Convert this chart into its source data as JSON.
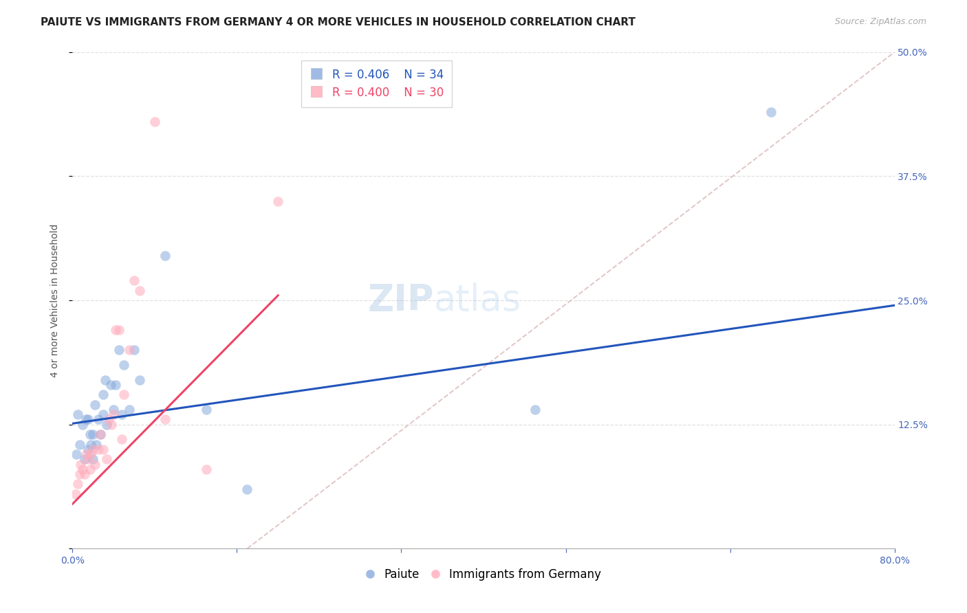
{
  "title": "PAIUTE VS IMMIGRANTS FROM GERMANY 4 OR MORE VEHICLES IN HOUSEHOLD CORRELATION CHART",
  "source": "Source: ZipAtlas.com",
  "ylabel": "4 or more Vehicles in Household",
  "xlim": [
    0.0,
    0.8
  ],
  "ylim": [
    0.0,
    0.5
  ],
  "xticks": [
    0.0,
    0.16,
    0.32,
    0.48,
    0.64,
    0.8
  ],
  "yticks": [
    0.0,
    0.125,
    0.25,
    0.375,
    0.5
  ],
  "background_color": "#ffffff",
  "grid_color": "#e0e0e0",
  "watermark_zip": "ZIP",
  "watermark_atlas": "atlas",
  "legend_blue_r": "R = 0.406",
  "legend_blue_n": "N = 34",
  "legend_pink_r": "R = 0.400",
  "legend_pink_n": "N = 30",
  "blue_color": "#88aadd",
  "pink_color": "#ffaabb",
  "blue_line_color": "#2255bb",
  "pink_line_color": "#ee4466",
  "dashed_line_color": "#ddbbbb",
  "blue_line_x0": 0.0,
  "blue_line_y0": 0.126,
  "blue_line_x1": 0.8,
  "blue_line_y1": 0.245,
  "pink_line_x0": 0.0,
  "pink_line_y0": 0.045,
  "pink_line_x1": 0.2,
  "pink_line_y1": 0.255,
  "dash_line_x0": 0.17,
  "dash_line_y0": 0.0,
  "dash_line_x1": 0.8,
  "dash_line_y1": 0.5,
  "paiute_x": [
    0.004,
    0.005,
    0.007,
    0.01,
    0.012,
    0.013,
    0.015,
    0.015,
    0.017,
    0.018,
    0.02,
    0.02,
    0.022,
    0.023,
    0.025,
    0.027,
    0.03,
    0.03,
    0.032,
    0.033,
    0.037,
    0.04,
    0.042,
    0.045,
    0.048,
    0.05,
    0.055,
    0.06,
    0.065,
    0.09,
    0.13,
    0.17,
    0.45,
    0.68
  ],
  "paiute_y": [
    0.095,
    0.135,
    0.105,
    0.125,
    0.09,
    0.13,
    0.1,
    0.13,
    0.115,
    0.105,
    0.09,
    0.115,
    0.145,
    0.105,
    0.13,
    0.115,
    0.155,
    0.135,
    0.17,
    0.125,
    0.165,
    0.14,
    0.165,
    0.2,
    0.135,
    0.185,
    0.14,
    0.2,
    0.17,
    0.295,
    0.14,
    0.06,
    0.14,
    0.44
  ],
  "germany_x": [
    0.003,
    0.005,
    0.007,
    0.008,
    0.01,
    0.012,
    0.013,
    0.015,
    0.017,
    0.018,
    0.02,
    0.022,
    0.025,
    0.027,
    0.03,
    0.033,
    0.035,
    0.038,
    0.04,
    0.042,
    0.045,
    0.048,
    0.05,
    0.055,
    0.06,
    0.065,
    0.08,
    0.09,
    0.13,
    0.2
  ],
  "germany_y": [
    0.055,
    0.065,
    0.075,
    0.085,
    0.08,
    0.075,
    0.095,
    0.09,
    0.08,
    0.095,
    0.1,
    0.085,
    0.1,
    0.115,
    0.1,
    0.09,
    0.13,
    0.125,
    0.135,
    0.22,
    0.22,
    0.11,
    0.155,
    0.2,
    0.27,
    0.26,
    0.43,
    0.13,
    0.08,
    0.35
  ],
  "title_fontsize": 11,
  "axis_label_fontsize": 10,
  "tick_fontsize": 10,
  "legend_fontsize": 12,
  "watermark_fontsize": 38,
  "source_fontsize": 9
}
